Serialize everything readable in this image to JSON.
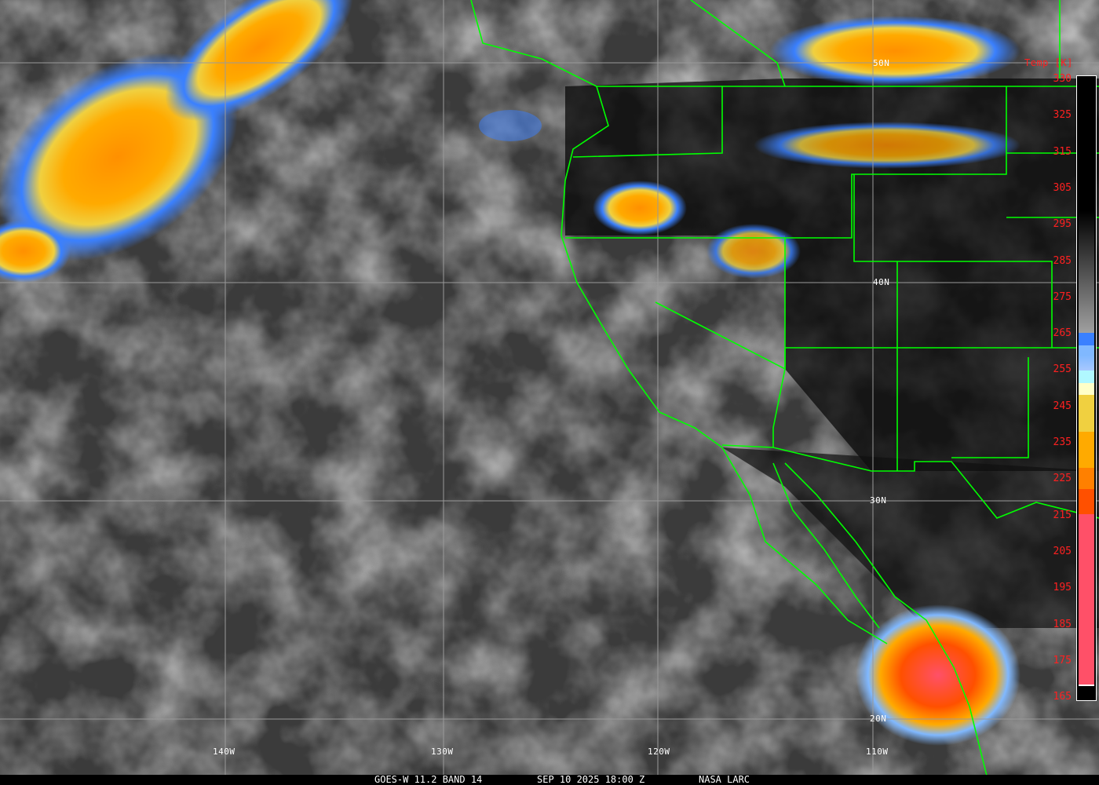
{
  "map": {
    "footer": {
      "satellite": "GOES-W 11.2 BAND 14",
      "datetime": "SEP 10 2025 18:00 Z",
      "credit": "NASA LARC"
    },
    "lat_labels": [
      "50N",
      "40N",
      "30N",
      "20N"
    ],
    "lon_labels": [
      "140W",
      "130W",
      "120W",
      "110W"
    ],
    "colorbar": {
      "title": "Temp [K]",
      "ticks": [
        "330",
        "325",
        "315",
        "305",
        "295",
        "285",
        "275",
        "265",
        "255",
        "245",
        "235",
        "225",
        "215",
        "205",
        "195",
        "185",
        "175",
        "165"
      ],
      "colors": [
        "#000000",
        "#a0a0a0",
        "#3a80ff",
        "#80b8ff",
        "#b0f8ff",
        "#ffffc8",
        "#f0d040",
        "#ffaa00",
        "#ff8000",
        "#ff5000",
        "#ff5068"
      ]
    },
    "coastline_color": "#00ff00"
  }
}
